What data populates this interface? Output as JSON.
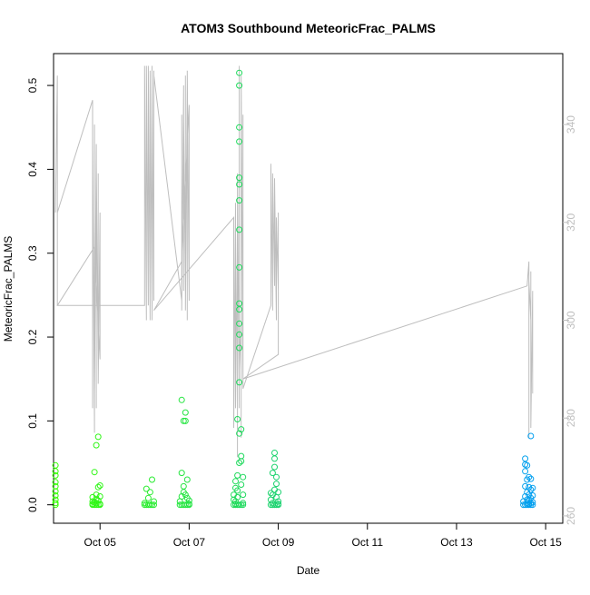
{
  "chart_data": {
    "type": "scatter",
    "title": "ATOM3 Southbound MeteoricFrac_PALMS",
    "xlabel": "Date",
    "ylabel": "MeteoricFrac_PALMS",
    "xlim": [
      "2017-10-03T22:58",
      "2017-10-15T09:13"
    ],
    "ylim": [
      -0.022,
      0.538
    ],
    "y2lim": [
      258.5,
      354.5
    ],
    "x_ticks": [
      "Oct 05",
      "Oct 07",
      "Oct 09",
      "Oct 11",
      "Oct 13",
      "Oct 15"
    ],
    "x_tick_values": [
      "2017-10-05",
      "2017-10-07",
      "2017-10-09",
      "2017-10-11",
      "2017-10-13",
      "2017-10-15"
    ],
    "y_ticks": [
      "0.0",
      "0.1",
      "0.2",
      "0.3",
      "0.4",
      "0.5"
    ],
    "y_tick_values": [
      0.0,
      0.1,
      0.2,
      0.3,
      0.4,
      0.5
    ],
    "y2_ticks": [
      "260",
      "280",
      "300",
      "320",
      "340"
    ],
    "y2_tick_values": [
      260,
      280,
      300,
      320,
      340
    ],
    "grid": false,
    "legend": "none",
    "colors": {
      "points_early": "#33ff00",
      "points_late": "#0099ff",
      "secondary_line": "#bebebe",
      "axis": "#000000",
      "secondary_axis": "#bebebe"
    },
    "series": [
      {
        "points": [
          [
            "2017-10-04T00:00",
            0.0
          ],
          [
            "2017-10-04T00:00",
            0.002
          ],
          [
            "2017-10-04T00:00",
            0.006
          ],
          [
            "2017-10-04T00:00",
            0.011
          ],
          [
            "2017-10-04T00:00",
            0.016
          ],
          [
            "2017-10-04T00:00",
            0.022
          ],
          [
            "2017-10-04T00:00",
            0.027
          ],
          [
            "2017-10-04T00:00",
            0.035
          ],
          [
            "2017-10-04T00:00",
            0.04
          ],
          [
            "2017-10-04T00:00",
            0.047
          ],
          [
            "2017-10-04T20:00",
            0.0
          ],
          [
            "2017-10-04T20:00",
            0.004
          ],
          [
            "2017-10-04T20:00",
            0.009
          ],
          [
            "2017-10-04T21:00",
            0.0
          ],
          [
            "2017-10-04T21:00",
            0.003
          ],
          [
            "2017-10-04T22:00",
            0.0
          ],
          [
            "2017-10-04T22:00",
            0.002
          ],
          [
            "2017-10-04T22:00",
            0.007
          ],
          [
            "2017-10-04T23:00",
            0.0
          ],
          [
            "2017-10-04T23:00",
            0.005
          ],
          [
            "2017-10-05T00:00",
            0.0
          ],
          [
            "2017-10-05T00:00",
            0.01
          ],
          [
            "2017-10-04T21:00",
            0.039
          ],
          [
            "2017-10-04T22:00",
            0.071
          ],
          [
            "2017-10-04T23:00",
            0.081
          ],
          [
            "2017-10-04T23:00",
            0.021
          ],
          [
            "2017-10-05T00:00",
            0.023
          ],
          [
            "2017-10-04T22:00",
            0.012
          ],
          [
            "2017-10-05T00:00",
            0.001
          ],
          [
            "2017-10-04T20:00",
            0.001
          ],
          [
            "2017-10-06T00:00",
            0.0
          ],
          [
            "2017-10-06T00:00",
            0.002
          ],
          [
            "2017-10-06T01:00",
            0.0
          ],
          [
            "2017-10-06T02:00",
            0.0
          ],
          [
            "2017-10-06T03:00",
            0.0
          ],
          [
            "2017-10-06T04:00",
            0.0
          ],
          [
            "2017-10-06T05:00",
            0.0
          ],
          [
            "2017-10-06T02:00",
            0.008
          ],
          [
            "2017-10-06T03:00",
            0.015
          ],
          [
            "2017-10-06T04:00",
            0.03
          ],
          [
            "2017-10-06T05:00",
            0.004
          ],
          [
            "2017-10-06T01:00",
            0.019
          ],
          [
            "2017-10-06T19:00",
            0.0
          ],
          [
            "2017-10-06T19:00",
            0.004
          ],
          [
            "2017-10-06T20:00",
            0.0
          ],
          [
            "2017-10-06T20:00",
            0.01
          ],
          [
            "2017-10-06T20:00",
            0.038
          ],
          [
            "2017-10-06T21:00",
            0.0
          ],
          [
            "2017-10-06T21:00",
            0.015
          ],
          [
            "2017-10-06T21:00",
            0.1
          ],
          [
            "2017-10-06T20:00",
            0.125
          ],
          [
            "2017-10-06T22:00",
            0.0
          ],
          [
            "2017-10-06T22:00",
            0.11
          ],
          [
            "2017-10-06T22:00",
            0.1
          ],
          [
            "2017-10-06T23:00",
            0.0
          ],
          [
            "2017-10-06T23:00",
            0.03
          ],
          [
            "2017-10-07T00:00",
            0.0
          ],
          [
            "2017-10-07T00:00",
            0.005
          ],
          [
            "2017-10-06T22:00",
            0.012
          ],
          [
            "2017-10-06T23:00",
            0.008
          ],
          [
            "2017-10-06T21:00",
            0.022
          ],
          [
            "2017-10-07T00:00",
            0.001
          ]
        ]
      },
      {
        "points": [
          [
            "2017-10-08T00:00",
            0.0
          ],
          [
            "2017-10-08T00:00",
            0.006
          ],
          [
            "2017-10-08T00:00",
            0.012
          ],
          [
            "2017-10-08T01:00",
            0.0
          ],
          [
            "2017-10-08T01:00",
            0.004
          ],
          [
            "2017-10-08T01:00",
            0.02
          ],
          [
            "2017-10-08T01:00",
            0.028
          ],
          [
            "2017-10-08T02:00",
            0.0
          ],
          [
            "2017-10-08T02:00",
            0.009
          ],
          [
            "2017-10-08T02:00",
            0.017
          ],
          [
            "2017-10-08T02:00",
            0.102
          ],
          [
            "2017-10-08T03:00",
            0.0
          ],
          [
            "2017-10-08T03:00",
            0.05
          ],
          [
            "2017-10-08T03:00",
            0.085
          ],
          [
            "2017-10-08T03:00",
            0.146
          ],
          [
            "2017-10-08T03:00",
            0.187
          ],
          [
            "2017-10-08T03:00",
            0.203
          ],
          [
            "2017-10-08T03:00",
            0.216
          ],
          [
            "2017-10-08T03:00",
            0.233
          ],
          [
            "2017-10-08T03:00",
            0.24
          ],
          [
            "2017-10-08T03:00",
            0.283
          ],
          [
            "2017-10-08T03:00",
            0.328
          ],
          [
            "2017-10-08T03:00",
            0.363
          ],
          [
            "2017-10-08T03:00",
            0.382
          ],
          [
            "2017-10-08T03:00",
            0.39
          ],
          [
            "2017-10-08T03:00",
            0.433
          ],
          [
            "2017-10-08T03:00",
            0.45
          ],
          [
            "2017-10-08T03:00",
            0.5
          ],
          [
            "2017-10-08T03:00",
            0.515
          ],
          [
            "2017-10-08T04:00",
            0.0
          ],
          [
            "2017-10-08T04:00",
            0.024
          ],
          [
            "2017-10-08T04:00",
            0.058
          ],
          [
            "2017-10-08T04:00",
            0.09
          ],
          [
            "2017-10-08T05:00",
            0.0
          ],
          [
            "2017-10-08T05:00",
            0.012
          ],
          [
            "2017-10-08T05:00",
            0.033
          ],
          [
            "2017-10-08T04:00",
            0.052
          ],
          [
            "2017-10-08T02:00",
            0.035
          ],
          [
            "2017-10-08T05:00",
            0.002
          ],
          [
            "2017-10-08T01:00",
            0.001
          ],
          [
            "2017-10-08T20:00",
            0.0
          ],
          [
            "2017-10-08T20:00",
            0.006
          ],
          [
            "2017-10-08T21:00",
            0.0
          ],
          [
            "2017-10-08T21:00",
            0.012
          ],
          [
            "2017-10-08T21:00",
            0.038
          ],
          [
            "2017-10-08T22:00",
            0.0
          ],
          [
            "2017-10-08T22:00",
            0.045
          ],
          [
            "2017-10-08T22:00",
            0.055
          ],
          [
            "2017-10-08T22:00",
            0.062
          ],
          [
            "2017-10-08T23:00",
            0.0
          ],
          [
            "2017-10-08T23:00",
            0.009
          ],
          [
            "2017-10-08T23:00",
            0.025
          ],
          [
            "2017-10-09T00:00",
            0.0
          ],
          [
            "2017-10-09T00:00",
            0.004
          ],
          [
            "2017-10-09T00:00",
            0.015
          ],
          [
            "2017-10-08T21:00",
            0.002
          ],
          [
            "2017-10-08T22:00",
            0.018
          ],
          [
            "2017-10-08T23:00",
            0.033
          ],
          [
            "2017-10-09T00:00",
            0.001
          ],
          [
            "2017-10-08T20:00",
            0.014
          ]
        ]
      },
      {
        "points": [
          [
            "2017-10-14T12:00",
            0.0
          ],
          [
            "2017-10-14T12:00",
            0.004
          ],
          [
            "2017-10-14T13:00",
            0.0
          ],
          [
            "2017-10-14T13:00",
            0.01
          ],
          [
            "2017-10-14T13:00",
            0.022
          ],
          [
            "2017-10-14T13:00",
            0.04
          ],
          [
            "2017-10-14T13:00",
            0.048
          ],
          [
            "2017-10-14T13:00",
            0.055
          ],
          [
            "2017-10-14T14:00",
            0.0
          ],
          [
            "2017-10-14T14:00",
            0.006
          ],
          [
            "2017-10-14T14:00",
            0.015
          ],
          [
            "2017-10-14T14:00",
            0.03
          ],
          [
            "2017-10-14T14:00",
            0.047
          ],
          [
            "2017-10-14T15:00",
            0.0
          ],
          [
            "2017-10-14T15:00",
            0.005
          ],
          [
            "2017-10-14T15:00",
            0.012
          ],
          [
            "2017-10-14T15:00",
            0.021
          ],
          [
            "2017-10-14T15:00",
            0.033
          ],
          [
            "2017-10-14T16:00",
            0.0
          ],
          [
            "2017-10-14T16:00",
            0.008
          ],
          [
            "2017-10-14T16:00",
            0.018
          ],
          [
            "2017-10-14T16:00",
            0.082
          ],
          [
            "2017-10-14T16:00",
            0.031
          ],
          [
            "2017-10-14T17:00",
            0.0
          ],
          [
            "2017-10-14T17:00",
            0.003
          ],
          [
            "2017-10-14T17:00",
            0.011
          ],
          [
            "2017-10-14T17:00",
            0.02
          ],
          [
            "2017-10-14T14:00",
            0.002
          ],
          [
            "2017-10-14T15:00",
            0.001
          ],
          [
            "2017-10-14T16:00",
            0.002
          ]
        ]
      }
    ],
    "secondary_line_x": [
      "2017-10-04T00:00",
      "2017-10-04T01:00",
      "2017-10-04T01:00",
      "2017-10-04T01:00",
      "2017-10-04T01:00",
      "2017-10-04T01:00",
      "2017-10-04T01:00",
      "2017-10-04T20:00",
      "2017-10-04T20:00",
      "2017-10-04T20:00",
      "2017-10-04T21:00",
      "2017-10-04T21:00",
      "2017-10-04T21:00",
      "2017-10-04T22:00",
      "2017-10-04T22:00",
      "2017-10-04T22:00",
      "2017-10-04T23:00",
      "2017-10-04T23:00",
      "2017-10-04T23:00",
      "2017-10-05T00:00",
      "2017-10-05T00:00",
      "2017-10-04T21:00",
      "2017-10-04T01:00",
      "2017-10-06T00:00",
      "2017-10-06T00:00",
      "2017-10-06T01:00",
      "2017-10-06T01:00",
      "2017-10-06T02:00",
      "2017-10-06T02:00",
      "2017-10-06T03:00",
      "2017-10-06T03:00",
      "2017-10-06T04:00",
      "2017-10-06T04:00",
      "2017-10-06T04:00",
      "2017-10-06T05:00",
      "2017-10-06T05:00",
      "2017-10-06T05:00",
      "2017-10-06T20:00",
      "2017-10-06T20:00",
      "2017-10-06T20:00",
      "2017-10-06T21:00",
      "2017-10-06T21:00",
      "2017-10-06T21:00",
      "2017-10-06T22:00",
      "2017-10-06T22:00",
      "2017-10-06T22:00",
      "2017-10-06T23:00",
      "2017-10-06T23:00",
      "2017-10-06T23:00",
      "2017-10-07T00:00",
      "2017-10-07T00:00",
      "2017-10-06T20:00",
      "2017-10-06T05:00",
      "2017-10-08T00:00",
      "2017-10-08T00:00",
      "2017-10-08T01:00",
      "2017-10-08T01:00",
      "2017-10-08T02:00",
      "2017-10-08T02:00",
      "2017-10-08T02:00",
      "2017-10-08T03:00",
      "2017-10-08T03:00",
      "2017-10-08T03:00",
      "2017-10-08T04:00",
      "2017-10-08T04:00",
      "2017-10-08T04:00",
      "2017-10-08T05:00",
      "2017-10-08T05:00",
      "2017-10-08T05:00",
      "2017-10-08T20:00",
      "2017-10-08T20:00",
      "2017-10-08T21:00",
      "2017-10-08T21:00",
      "2017-10-08T22:00",
      "2017-10-08T22:00",
      "2017-10-08T23:00",
      "2017-10-08T23:00",
      "2017-10-09T00:00",
      "2017-10-09T00:00",
      "2017-10-09T00:00",
      "2017-10-08T05:00",
      "2017-10-14T14:00",
      "2017-10-14T15:00",
      "2017-10-14T15:00",
      "2017-10-14T15:00",
      "2017-10-14T16:00",
      "2017-10-14T16:00",
      "2017-10-14T16:00",
      "2017-10-14T17:00",
      "2017-10-14T17:00",
      "2017-10-14T17:00"
    ],
    "secondary_line_y2": [
      322,
      350,
      303,
      347,
      318,
      338,
      322,
      345,
      282,
      338,
      277,
      340,
      285,
      336,
      282,
      332,
      290,
      330,
      287,
      322,
      292,
      315,
      303,
      303,
      352,
      300,
      352,
      303,
      352,
      300,
      351,
      302,
      352,
      300,
      351,
      304,
      350,
      304,
      342,
      302,
      348,
      306,
      341,
      306,
      350,
      302,
      348,
      300,
      351,
      304,
      344,
      312,
      302,
      321,
      278,
      324,
      282,
      320,
      272,
      330,
      282,
      352,
      290,
      300,
      276,
      350,
      288,
      342,
      286,
      303,
      332,
      302,
      330,
      307,
      329,
      300,
      321,
      306,
      322,
      293,
      288,
      307,
      312,
      276,
      308,
      300,
      310,
      278,
      306,
      285,
      300
    ]
  }
}
